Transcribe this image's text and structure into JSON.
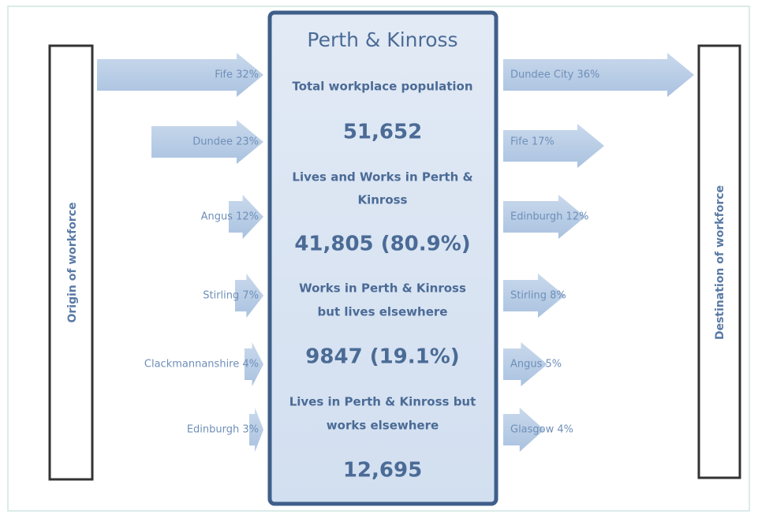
{
  "center": {
    "title": "Perth & Kinross",
    "sections": [
      {
        "label": [
          "Total workplace population"
        ],
        "value": "51,652"
      },
      {
        "label": [
          "Lives and Works in Perth &",
          "Kinross"
        ],
        "value": "41,805 (80.9%)"
      },
      {
        "label": [
          "Works in Perth & Kinross",
          "but lives elsewhere"
        ],
        "value": "9847 (19.1%)"
      },
      {
        "label": [
          "Lives in Perth & Kinross but",
          "works elsewhere"
        ],
        "value": "12,695"
      }
    ]
  },
  "origin": {
    "title": "Origin of workforce",
    "items": [
      "Fife 32%",
      "Dundee 23%",
      "Angus 12%",
      "Stirling 7%",
      "Clackmannanshire 4%",
      "Edinburgh 3%"
    ]
  },
  "destination": {
    "title": "Destination of workforce",
    "items": [
      "Dundee City 36%",
      "Fife 17%",
      "Edinburgh 12%",
      "Stirling 8%",
      "Angus 5%",
      "Glasgow 4%"
    ]
  }
}
